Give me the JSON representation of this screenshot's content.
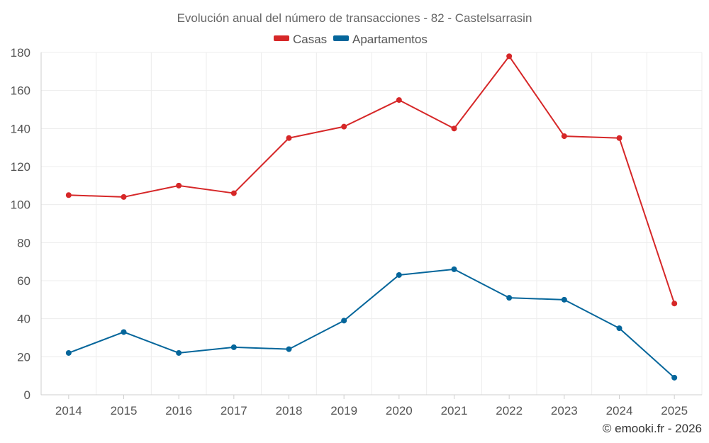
{
  "chart_data": {
    "type": "line",
    "title": "Evolución anual del número de transacciones - 82 - Castelsarrasin",
    "categories": [
      "2014",
      "2015",
      "2016",
      "2017",
      "2018",
      "2019",
      "2020",
      "2021",
      "2022",
      "2023",
      "2024",
      "2025"
    ],
    "series": [
      {
        "name": "Casas",
        "color": "#d62728",
        "values": [
          105,
          104,
          110,
          106,
          135,
          141,
          155,
          140,
          178,
          136,
          135,
          48
        ]
      },
      {
        "name": "Apartamentos",
        "color": "#05669b",
        "values": [
          22,
          33,
          22,
          25,
          24,
          39,
          63,
          66,
          51,
          50,
          35,
          9
        ]
      }
    ],
    "ylim": [
      0,
      180
    ],
    "yticks": [
      0,
      20,
      40,
      60,
      80,
      100,
      120,
      140,
      160,
      180
    ],
    "grid": true,
    "legend_position": "top-center",
    "xlabel": "",
    "ylabel": ""
  },
  "credit": "© emooki.fr - 2026"
}
